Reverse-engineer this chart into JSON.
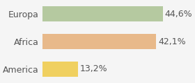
{
  "categories": [
    "America",
    "Africa",
    "Europa"
  ],
  "values": [
    13.2,
    42.1,
    44.6
  ],
  "labels": [
    "13,2%",
    "42,1%",
    "44,6%"
  ],
  "bar_colors": [
    "#f0d060",
    "#e8b98a",
    "#b5c9a0"
  ],
  "background_color": "#f5f5f5",
  "xlim": [
    0,
    55
  ],
  "bar_height": 0.55,
  "label_fontsize": 9,
  "tick_fontsize": 9
}
